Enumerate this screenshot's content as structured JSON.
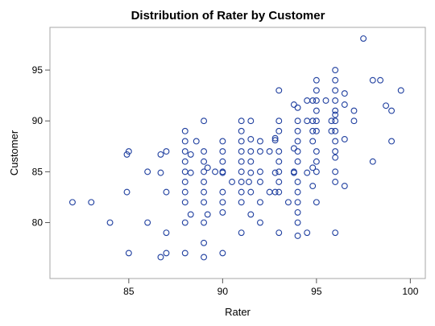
{
  "chart_data": {
    "type": "scatter",
    "title": "Distribution of Rater by Customer",
    "xlabel": "Rater",
    "ylabel": "Customer",
    "xlim": [
      80.8,
      100.8
    ],
    "ylim": [
      74.5,
      99.2
    ],
    "xticks": [
      85,
      90,
      95,
      100
    ],
    "yticks": [
      80,
      85,
      90,
      95
    ],
    "grid": false,
    "marker_color": "#1f3f9f",
    "series": [
      {
        "points": [
          [
            82,
            82
          ],
          [
            83,
            82
          ],
          [
            84,
            80
          ],
          [
            85,
            77
          ],
          [
            84.9,
            86.7
          ],
          [
            85,
            87
          ],
          [
            84.9,
            83
          ],
          [
            86,
            85
          ],
          [
            86,
            80
          ],
          [
            86.7,
            84.9
          ],
          [
            86.7,
            86.7
          ],
          [
            86.7,
            76.6
          ],
          [
            87,
            87
          ],
          [
            87,
            83
          ],
          [
            87,
            79
          ],
          [
            87,
            77
          ],
          [
            88,
            89
          ],
          [
            88,
            88
          ],
          [
            88,
            87
          ],
          [
            88,
            86
          ],
          [
            88,
            85
          ],
          [
            88,
            84
          ],
          [
            88,
            83
          ],
          [
            88,
            82
          ],
          [
            88,
            80
          ],
          [
            88,
            77
          ],
          [
            88.3,
            86.7
          ],
          [
            88.3,
            84.9
          ],
          [
            88.3,
            80.8
          ],
          [
            88.6,
            88
          ],
          [
            89,
            90
          ],
          [
            89,
            87
          ],
          [
            89,
            86
          ],
          [
            89,
            85
          ],
          [
            89,
            84
          ],
          [
            89,
            83
          ],
          [
            89,
            82
          ],
          [
            89,
            80
          ],
          [
            89,
            78
          ],
          [
            89,
            76.6
          ],
          [
            89.2,
            80.8
          ],
          [
            89.2,
            85.4
          ],
          [
            89.6,
            85
          ],
          [
            90,
            88
          ],
          [
            90,
            87
          ],
          [
            90,
            86
          ],
          [
            90,
            85
          ],
          [
            90,
            84.9
          ],
          [
            90,
            83
          ],
          [
            90,
            82
          ],
          [
            90,
            81
          ],
          [
            90,
            77
          ],
          [
            90.5,
            84
          ],
          [
            91,
            90
          ],
          [
            91,
            89
          ],
          [
            91,
            88
          ],
          [
            91,
            87
          ],
          [
            91,
            86
          ],
          [
            91,
            85
          ],
          [
            91,
            84
          ],
          [
            91,
            83
          ],
          [
            91,
            82
          ],
          [
            91,
            79
          ],
          [
            91.4,
            84
          ],
          [
            91.5,
            90
          ],
          [
            91.5,
            88.2
          ],
          [
            91.5,
            87
          ],
          [
            91.5,
            86
          ],
          [
            91.5,
            84.9
          ],
          [
            91.5,
            83
          ],
          [
            91.5,
            80.8
          ],
          [
            92,
            88
          ],
          [
            92,
            87
          ],
          [
            92,
            85
          ],
          [
            92,
            84
          ],
          [
            92,
            82
          ],
          [
            92,
            80
          ],
          [
            92.5,
            83
          ],
          [
            92.5,
            87
          ],
          [
            92.8,
            88.3
          ],
          [
            92.8,
            88.1
          ],
          [
            92.8,
            84.9
          ],
          [
            92.8,
            83
          ],
          [
            93,
            93
          ],
          [
            93,
            90
          ],
          [
            93,
            89
          ],
          [
            93,
            87
          ],
          [
            93,
            86
          ],
          [
            93,
            85
          ],
          [
            93,
            84
          ],
          [
            93,
            83
          ],
          [
            93,
            79
          ],
          [
            93.5,
            82
          ],
          [
            93.8,
            91.6
          ],
          [
            93.8,
            87.3
          ],
          [
            93.8,
            84.9
          ],
          [
            93.8,
            85
          ],
          [
            94,
            91.3
          ],
          [
            94,
            90
          ],
          [
            94,
            89
          ],
          [
            94,
            88
          ],
          [
            94,
            87
          ],
          [
            94,
            86
          ],
          [
            94,
            84
          ],
          [
            94,
            83
          ],
          [
            94,
            82
          ],
          [
            94,
            81
          ],
          [
            94,
            80
          ],
          [
            94,
            78.7
          ],
          [
            94.5,
            92
          ],
          [
            94.5,
            90
          ],
          [
            94.5,
            84.9
          ],
          [
            94.5,
            79
          ],
          [
            94.8,
            92
          ],
          [
            94.8,
            90
          ],
          [
            94.8,
            89
          ],
          [
            94.8,
            88
          ],
          [
            94.8,
            85.4
          ],
          [
            94.8,
            83.6
          ],
          [
            95,
            94
          ],
          [
            95,
            93
          ],
          [
            95,
            92
          ],
          [
            95,
            91
          ],
          [
            95,
            90
          ],
          [
            95,
            89
          ],
          [
            95,
            87
          ],
          [
            95,
            86
          ],
          [
            95,
            85
          ],
          [
            95,
            82
          ],
          [
            95.5,
            92
          ],
          [
            95.8,
            90
          ],
          [
            95.8,
            89
          ],
          [
            96,
            95
          ],
          [
            96,
            94
          ],
          [
            96,
            93
          ],
          [
            96,
            92
          ],
          [
            96,
            91
          ],
          [
            96,
            90.6
          ],
          [
            96,
            90
          ],
          [
            96,
            89
          ],
          [
            96,
            88
          ],
          [
            96,
            87
          ],
          [
            96,
            86.4
          ],
          [
            96,
            85
          ],
          [
            96,
            84
          ],
          [
            96,
            79
          ],
          [
            96.5,
            92.7
          ],
          [
            96.5,
            91.6
          ],
          [
            96.5,
            88.2
          ],
          [
            96.5,
            83.6
          ],
          [
            97,
            91
          ],
          [
            97,
            90
          ],
          [
            97.5,
            98.1
          ],
          [
            98,
            94
          ],
          [
            98,
            86
          ],
          [
            98.4,
            94
          ],
          [
            98.7,
            91.5
          ],
          [
            99,
            91
          ],
          [
            99,
            88
          ],
          [
            99.5,
            93
          ]
        ]
      }
    ]
  }
}
